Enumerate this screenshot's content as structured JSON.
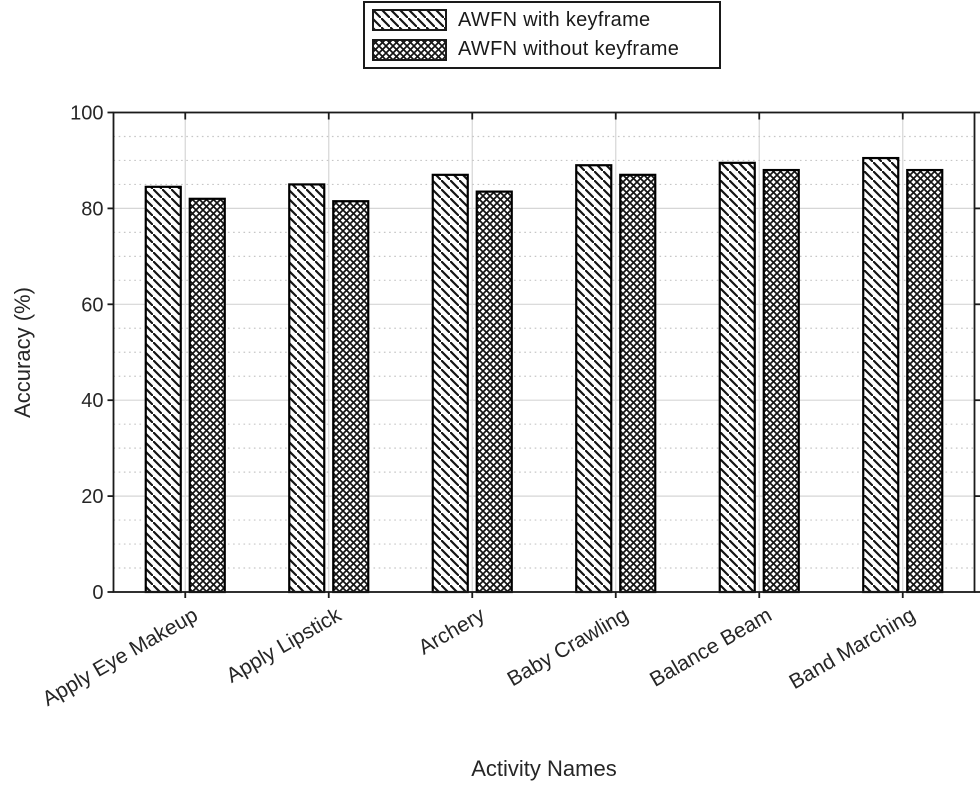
{
  "figure": {
    "background": "#ffffff"
  },
  "legend": {
    "position": "top-center",
    "items": [
      {
        "label": "AWFN with keyframe",
        "pattern": "diagonal-hatch"
      },
      {
        "label": "AWFN without keyframe",
        "pattern": "cross-hatch"
      }
    ]
  },
  "chart_data": {
    "type": "bar",
    "title": "",
    "xlabel": "Activity Names",
    "ylabel": "Accuracy (%)",
    "categories": [
      "Apply Eye Makeup",
      "Apply Lipstick",
      "Archery",
      "Baby Crawling",
      "Balance Beam",
      "Band Marching"
    ],
    "series": [
      {
        "name": "AWFN with keyframe",
        "pattern": "diagonal-hatch",
        "values": [
          84.5,
          85,
          87,
          89,
          89.5,
          90.5
        ]
      },
      {
        "name": "AWFN without keyframe",
        "pattern": "cross-hatch",
        "values": [
          82,
          81.5,
          83.5,
          87,
          88,
          88
        ]
      }
    ],
    "ylim": [
      0,
      100
    ],
    "yticks": [
      0,
      20,
      40,
      60,
      80,
      100
    ],
    "minor_grid_step": 5,
    "grid": true,
    "minor_grid": true,
    "legend_position": "top-center",
    "xtick_rotation_deg": -30,
    "colors": {
      "bar_fill": "#ffffff",
      "bar_stroke": "#000000",
      "hatch": "#141414",
      "axis": "#1a1a1a",
      "text": "#262626",
      "major_grid": "#d6d6d6",
      "minor_grid": "#c6c6c6"
    }
  }
}
